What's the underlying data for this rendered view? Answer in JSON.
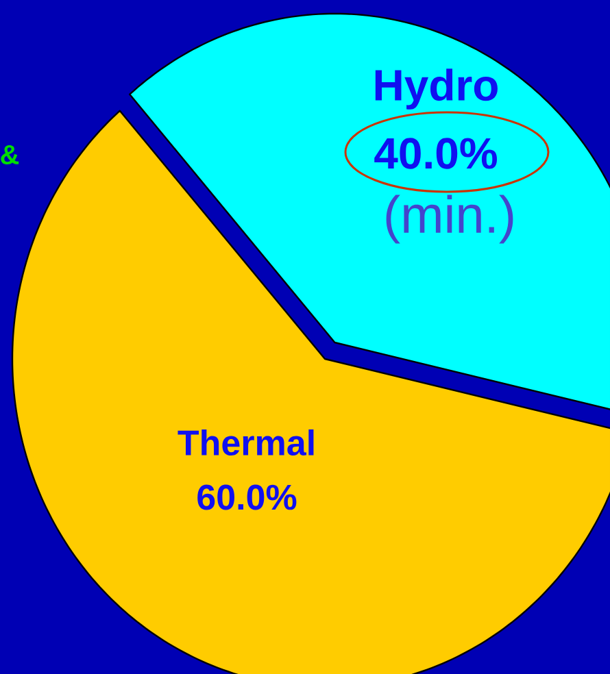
{
  "chart_data": {
    "type": "pie",
    "categories": [
      "Hydro",
      "Thermal"
    ],
    "values": [
      40.0,
      60.0
    ],
    "colors": [
      "#00ffff",
      "#ffcc00"
    ],
    "value_labels": [
      "40.0%",
      "60.0%"
    ],
    "annotations": [
      "(min.)",
      "&"
    ]
  }
}
